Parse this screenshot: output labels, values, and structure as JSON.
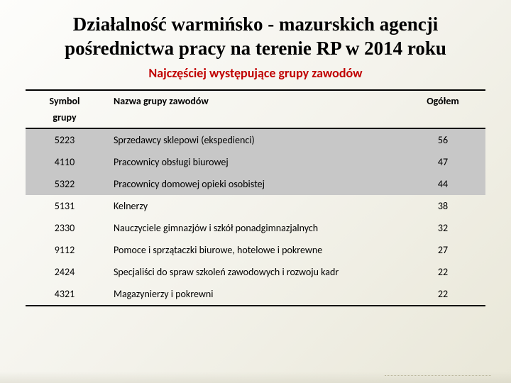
{
  "title_line1": "Działalność warmińsko - mazurskich agencji",
  "title_line2": "pośrednictwa pracy na terenie RP w 2014 roku",
  "subtitle": "Najczęściej występujące grupy zawodów",
  "table": {
    "headers": {
      "symbol": "Symbol",
      "symbol_sub": "grupy",
      "name": "Nazwa grupy zawodów",
      "total": "Ogółem"
    },
    "rows": [
      {
        "symbol": "5223",
        "name": "Sprzedawcy sklepowi (ekspedienci)",
        "total": "56",
        "shaded": true
      },
      {
        "symbol": "4110",
        "name": "Pracownicy obsługi biurowej",
        "total": "47",
        "shaded": true
      },
      {
        "symbol": "5322",
        "name": "Pracownicy domowej opieki osobistej",
        "total": "44",
        "shaded": true
      },
      {
        "symbol": "5131",
        "name": "Kelnerzy",
        "total": "38",
        "shaded": false
      },
      {
        "symbol": "2330",
        "name": "Nauczyciele gimnazjów i szkół ponadgimnazjalnych",
        "total": "32",
        "shaded": false
      },
      {
        "symbol": "9112",
        "name": "Pomoce i sprzątaczki biurowe, hotelowe i pokrewne",
        "total": "27",
        "shaded": false
      },
      {
        "symbol": "2424",
        "name": "Specjaliści do spraw szkoleń zawodowych i rozwoju kadr",
        "total": "22",
        "shaded": false
      },
      {
        "symbol": "4321",
        "name": "Magazynierzy i pokrewni",
        "total": "22",
        "shaded": false
      }
    ]
  },
  "styling": {
    "title_fontsize": 27,
    "title_color": "#000000",
    "subtitle_fontsize": 18,
    "subtitle_color": "#c00000",
    "table_fontsize": 14,
    "shaded_row_color": "#c7c7c7",
    "border_color": "#000000",
    "background_gradient": [
      "#fdfdfb",
      "#f4f3ec",
      "#e9e7d8"
    ],
    "col_widths": {
      "symbol": 110,
      "total": 120
    }
  }
}
